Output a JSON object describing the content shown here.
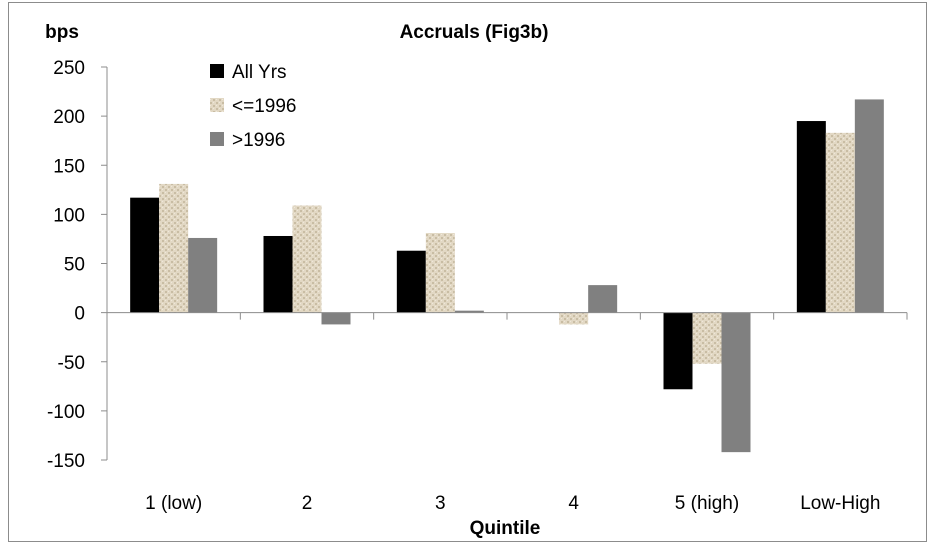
{
  "chart_data": {
    "type": "bar",
    "title": "Accruals (Fig3b)",
    "ylabel": "bps",
    "xlabel": "Quintile",
    "categories": [
      "1 (low)",
      "2",
      "3",
      "4",
      "5 (high)",
      "Low-High"
    ],
    "series": [
      {
        "name": "All Yrs",
        "values": [
          117,
          78,
          63,
          0,
          -78,
          195
        ],
        "color": "#000000",
        "pattern": "solid"
      },
      {
        "name": "<=1996",
        "values": [
          131,
          109,
          81,
          -12,
          -52,
          183
        ],
        "color": "#d8cdb7",
        "pattern": "burlap"
      },
      {
        "name": ">1996",
        "values": [
          76,
          -12,
          2,
          28,
          -142,
          217
        ],
        "color": "#808080",
        "pattern": "solid"
      }
    ],
    "ylim": [
      -150,
      250
    ],
    "yticks": [
      250,
      200,
      150,
      100,
      50,
      0,
      -50,
      -100,
      -150
    ],
    "grid": false,
    "legend_position": "top-left"
  }
}
